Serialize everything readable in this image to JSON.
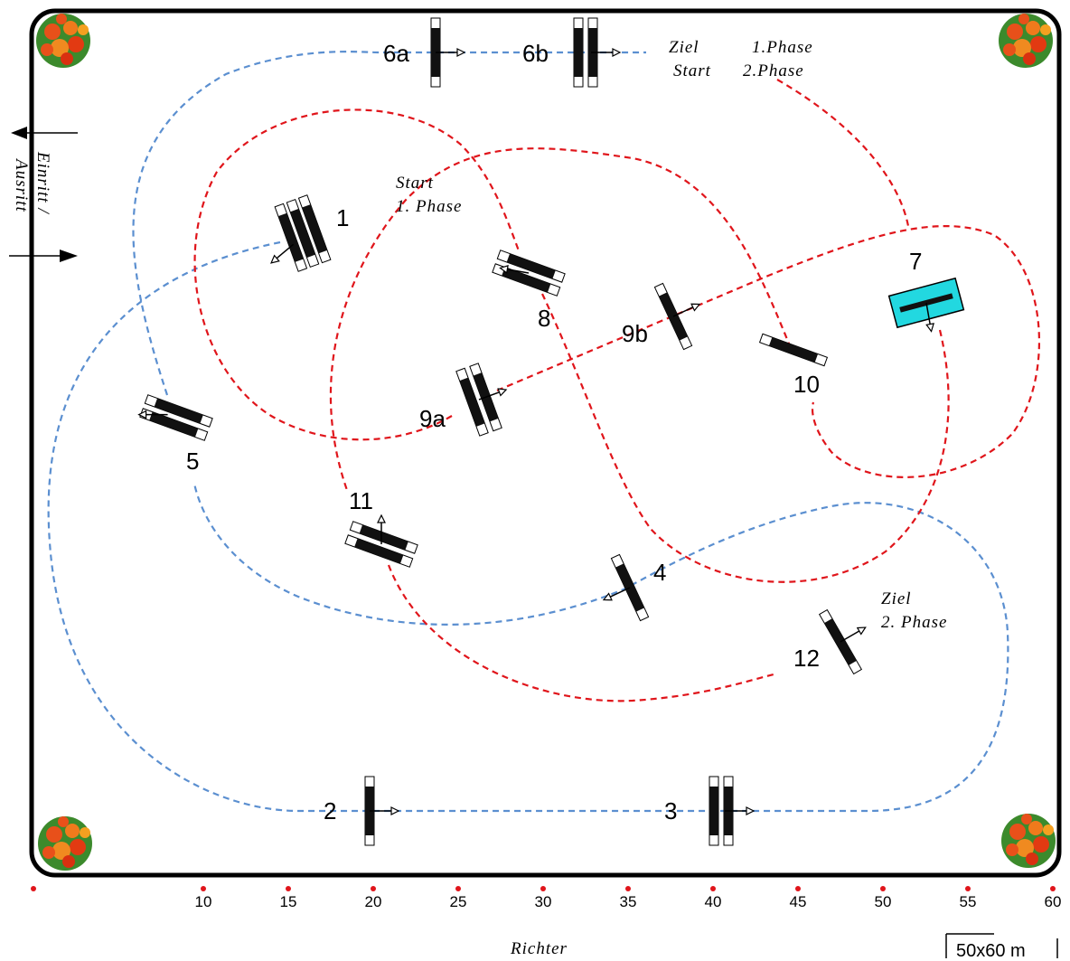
{
  "fences": [
    {
      "label": "1"
    },
    {
      "label": "2"
    },
    {
      "label": "3"
    },
    {
      "label": "4"
    },
    {
      "label": "5"
    },
    {
      "label": "6a"
    },
    {
      "label": "6b"
    },
    {
      "label": "7"
    },
    {
      "label": "8"
    },
    {
      "label": "9a"
    },
    {
      "label": "9b"
    },
    {
      "label": "10"
    },
    {
      "label": "11"
    },
    {
      "label": "12"
    }
  ],
  "annotations": {
    "finish_phase1": [
      "Ziel",
      "1.Phase"
    ],
    "start_phase2": [
      "Start",
      "2.Phase"
    ],
    "start_phase1": [
      "Start",
      "1. Phase"
    ],
    "finish_phase2": [
      "Ziel",
      "2. Phase"
    ]
  },
  "entrance": [
    "Einritt /",
    "Ausritt"
  ],
  "judge": "Richter",
  "arena_size": "50x60 m",
  "scale": {
    "ticks": [
      10,
      15,
      20,
      25,
      30,
      35,
      40,
      45,
      50,
      55,
      60
    ]
  }
}
